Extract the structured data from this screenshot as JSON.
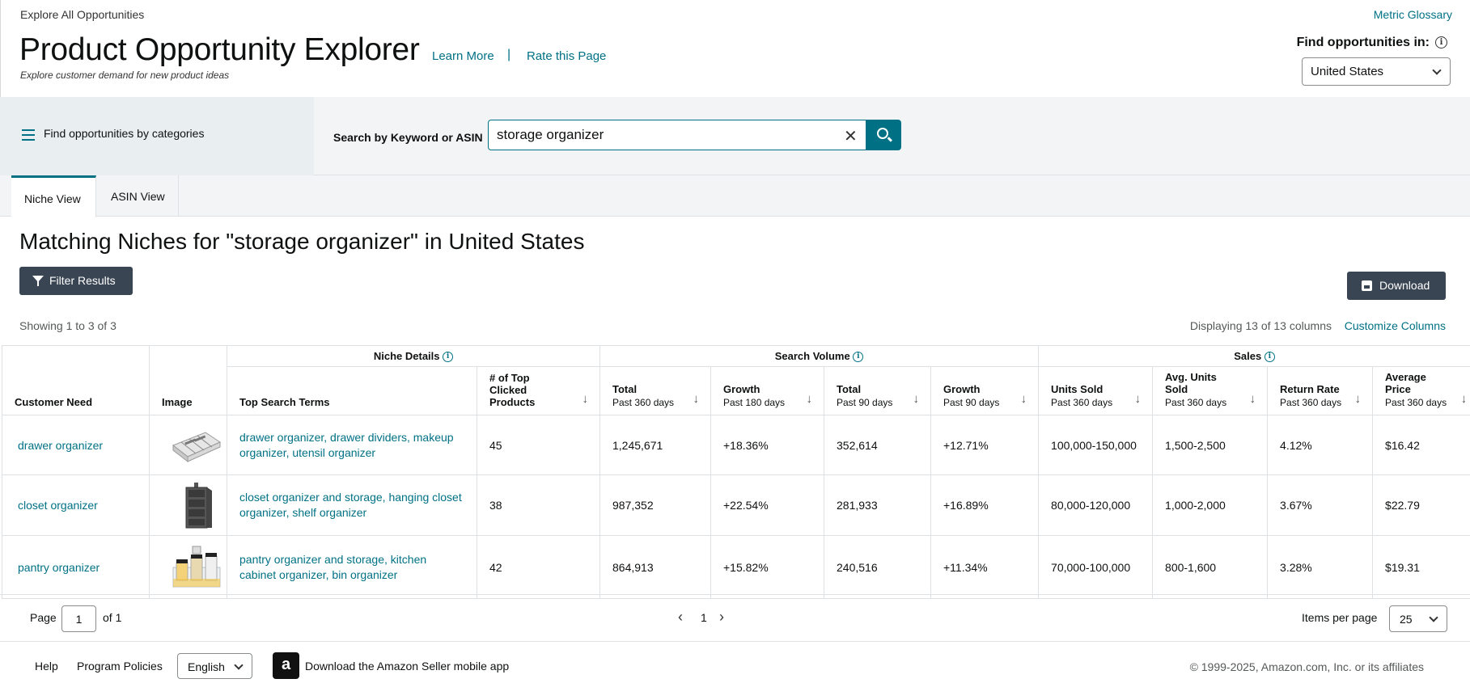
{
  "header": {
    "breadcrumb": "Explore All Opportunities",
    "metric_glossary": "Metric Glossary",
    "title": "Product Opportunity Explorer",
    "subtitle": "Explore customer demand for new product ideas",
    "learn_more": "Learn More",
    "separator": "|",
    "rate_page": "Rate this Page",
    "find_label": "Find opportunities in:",
    "info_glyph": "i",
    "country": "United States"
  },
  "search": {
    "categories_label": "Find opportunities by categories",
    "label": "Search by Keyword or ASIN",
    "value": "storage organizer",
    "clear_glyph": "✕"
  },
  "tabs": [
    {
      "label": "Niche View",
      "active": true
    },
    {
      "label": "ASIN View",
      "active": false
    }
  ],
  "results": {
    "heading": "Matching Niches for \"storage organizer\" in United States",
    "filter_label": "Filter Results",
    "download_label": "Download",
    "showing": "Showing 1 to 3 of 3",
    "displaying": "Displaying 13 of 13 columns",
    "customize": "Customize Columns"
  },
  "table": {
    "groups": {
      "niche_details": "Niche Details",
      "search_volume": "Search Volume",
      "sales": "Sales"
    },
    "columns": {
      "customer_need": "Customer Need",
      "image": "Image",
      "top_search_terms": "Top Search Terms",
      "top_clicked": "# of Top Clicked Products",
      "sv_total_360": {
        "label": "Total",
        "sub": "Past 360 days"
      },
      "sv_growth_180": {
        "label": "Growth",
        "sub": "Past 180 days"
      },
      "sv_total_90": {
        "label": "Total",
        "sub": "Past 90 days"
      },
      "sv_growth_90": {
        "label": "Growth",
        "sub": "Past 90 days"
      },
      "units_sold": {
        "label": "Units Sold",
        "sub": "Past 360 days"
      },
      "avg_units": {
        "label": "Avg. Units Sold",
        "sub": "Past 360 days"
      },
      "return_rate": {
        "label": "Return Rate",
        "sub": "Past 360 days"
      },
      "avg_price": {
        "label": "Average Price",
        "sub": "Past 360 days"
      }
    },
    "sort_glyph": "↓",
    "rows": [
      {
        "customer_need": "drawer organizer",
        "image": "drawer-organizer-image",
        "terms": "drawer organizer, drawer dividers, makeup organizer, utensil organizer",
        "top_clicked": "45",
        "sv_total_360": "1,245,671",
        "sv_growth_180": "+18.36%",
        "sv_total_90": "352,614",
        "sv_growth_90": "+12.71%",
        "units_sold": "100,000-150,000",
        "avg_units": "1,500-2,500",
        "return_rate": "4.12%",
        "avg_price": "$16.42"
      },
      {
        "customer_need": "closet organizer",
        "image": "closet-organizer-image",
        "terms": "closet organizer and storage, hanging closet organizer, shelf organizer",
        "top_clicked": "38",
        "sv_total_360": "987,352",
        "sv_growth_180": "+22.54%",
        "sv_total_90": "281,933",
        "sv_growth_90": "+16.89%",
        "units_sold": "80,000-120,000",
        "avg_units": "1,000-2,000",
        "return_rate": "3.67%",
        "avg_price": "$22.79"
      },
      {
        "customer_need": "pantry organizer",
        "image": "pantry-organizer-image",
        "terms": "pantry organizer and storage, kitchen cabinet organizer, bin organizer",
        "top_clicked": "42",
        "sv_total_360": "864,913",
        "sv_growth_180": "+15.82%",
        "sv_total_90": "240,516",
        "sv_growth_90": "+11.34%",
        "units_sold": "70,000-100,000",
        "avg_units": "800-1,600",
        "return_rate": "3.28%",
        "avg_price": "$19.31"
      }
    ]
  },
  "pagination": {
    "page_label": "Page",
    "page_value": "1",
    "of_pages": "of 1",
    "prev_glyph": "‹",
    "current": "1",
    "next_glyph": "›",
    "items_per_page_label": "Items per page",
    "items_per_page": "25"
  },
  "footer": {
    "help": "Help",
    "policies": "Program Policies",
    "language": "English",
    "app_icon_glyph": "a",
    "app_text": "Download the Amazon Seller mobile app",
    "copyright": "© 1999-2025, Amazon.com, Inc. or its affiliates"
  },
  "colors": {
    "accent": "#007185",
    "dark_button": "#3a4553",
    "band": "#f2f4f5"
  }
}
